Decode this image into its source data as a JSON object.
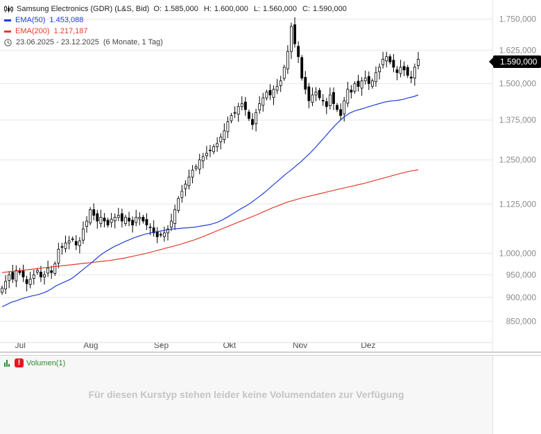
{
  "header": {
    "instrument": "Samsung Electronics (GDR) (L&S, Bid)",
    "open_label": "O:",
    "open": "1.585,000",
    "high_label": "H:",
    "high": "1.600,000",
    "low_label": "L:",
    "low": "1.560,000",
    "close_label": "C:",
    "close": "1.590,000"
  },
  "legend": {
    "ema50_label": "EMA(50)",
    "ema50_value": "1.453,088",
    "ema200_label": "EMA(200)",
    "ema200_value": "1.217,187",
    "date_range": "23.06.2025 - 23.12.2025",
    "period": "(6 Monate, 1 Tag)"
  },
  "last_price_badge": "1.590,000",
  "volume": {
    "title": "Volumen(1)",
    "message": "Für diesen Kurstyp stehen leider keine Volumendaten zur Verfügung"
  },
  "colors": {
    "ema50": "#1f3fd8",
    "ema200": "#e53b2c",
    "candle": "#000000",
    "grid": "#e6e6e6"
  },
  "chart_data": {
    "type": "candlestick",
    "y_scale": "log",
    "ylim": [
      808,
      1790
    ],
    "y_ticks": [
      850,
      900,
      950,
      1000,
      1125,
      1250,
      1375,
      1500,
      1625,
      1750
    ],
    "y_tick_labels": [
      "850,000",
      "900,000",
      "950,000",
      "1.000,000",
      "1.125,000",
      "1.250,000",
      "1.375,000",
      "1.500,000",
      "1.625,000",
      "1.750,000"
    ],
    "x_range": [
      "2025-06-23",
      "2025-12-23"
    ],
    "x_ticks": [
      {
        "label": "Jul",
        "date": "2025-07-01"
      },
      {
        "label": "Aug",
        "date": "2025-08-01"
      },
      {
        "label": "Sep",
        "date": "2025-09-01"
      },
      {
        "label": "Okt",
        "date": "2025-10-01"
      },
      {
        "label": "Nov",
        "date": "2025-11-01"
      },
      {
        "label": "Dez",
        "date": "2025-12-01"
      }
    ],
    "approx_closes": [
      920,
      935,
      950,
      940,
      960,
      955,
      945,
      930,
      940,
      950,
      960,
      945,
      950,
      965,
      955,
      975,
      1010,
      1015,
      1025,
      1030,
      1035,
      1020,
      1030,
      1060,
      1080,
      1110,
      1095,
      1080,
      1090,
      1080,
      1070,
      1085,
      1090,
      1095,
      1080,
      1090,
      1080,
      1070,
      1090,
      1090,
      1080,
      1070,
      1065,
      1050,
      1040,
      1045,
      1050,
      1060,
      1080,
      1110,
      1140,
      1160,
      1180,
      1200,
      1220,
      1230,
      1250,
      1260,
      1270,
      1280,
      1290,
      1300,
      1320,
      1340,
      1370,
      1390,
      1400,
      1420,
      1430,
      1410,
      1380,
      1360,
      1400,
      1430,
      1450,
      1470,
      1460,
      1480,
      1490,
      1510,
      1560,
      1620,
      1720,
      1650,
      1600,
      1520,
      1480,
      1440,
      1460,
      1470,
      1450,
      1440,
      1420,
      1460,
      1430,
      1410,
      1390,
      1440,
      1480,
      1470,
      1500,
      1490,
      1510,
      1520,
      1500,
      1510,
      1540,
      1560,
      1590,
      1600,
      1580,
      1560,
      1540,
      1560,
      1550,
      1530,
      1520,
      1560,
      1590
    ],
    "series": [
      {
        "name": "EMA(50)",
        "approx_values": [
          880,
          885,
          890,
          893,
          897,
          900,
          903,
          905,
          908,
          912,
          918,
          925,
          930,
          935,
          940,
          948,
          957,
          966,
          975,
          985,
          995,
          1003,
          1010,
          1017,
          1022,
          1028,
          1033,
          1038,
          1042,
          1046,
          1049,
          1052,
          1054,
          1056,
          1058,
          1060,
          1061,
          1062,
          1063,
          1064,
          1066,
          1068,
          1070,
          1073,
          1077,
          1083,
          1090,
          1098,
          1106,
          1114,
          1121,
          1130,
          1140,
          1150,
          1161,
          1173,
          1185,
          1197,
          1209,
          1220,
          1232,
          1244,
          1258,
          1272,
          1288,
          1305,
          1322,
          1340,
          1357,
          1373,
          1387,
          1398,
          1405,
          1410,
          1415,
          1420,
          1425,
          1430,
          1435,
          1438,
          1440,
          1442,
          1445,
          1450,
          1454,
          1460
        ]
      },
      {
        "name": "EMA(200)",
        "approx_values": [
          955,
          957,
          959,
          961,
          963,
          965,
          967,
          969,
          971,
          973,
          975,
          977,
          979,
          981,
          983,
          986,
          989,
          993,
          997,
          1001,
          1006,
          1011,
          1016,
          1021,
          1027,
          1033,
          1040,
          1048,
          1056,
          1064,
          1072,
          1080,
          1088,
          1096,
          1105,
          1114,
          1122,
          1130,
          1136,
          1142,
          1147,
          1152,
          1157,
          1162,
          1167,
          1172,
          1177,
          1182,
          1188,
          1194,
          1200,
          1206,
          1212,
          1217,
          1221
        ]
      }
    ]
  }
}
